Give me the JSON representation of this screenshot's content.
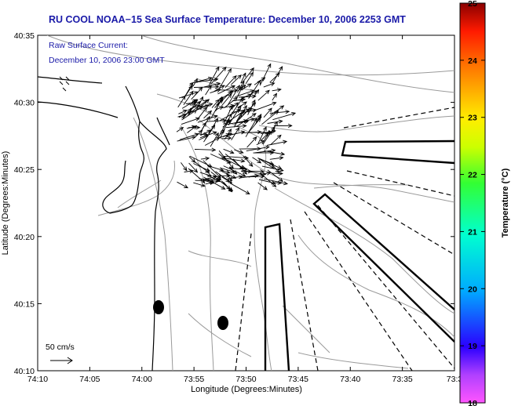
{
  "title": "RU COOL  NOAA−15  Sea Surface Temperature:  December 10, 2006 2253 GMT",
  "annotation": {
    "line1": "Raw Surface Current:",
    "line2": "December 10, 2006 23:00 GMT"
  },
  "scale_label": "50 cm/s",
  "axes": {
    "xlabel": "Longitude (Degrees:Minutes)",
    "ylabel": "Latitude (Degrees:Minutes)",
    "x_ticks": [
      "74:10",
      "74:05",
      "74:00",
      "73:55",
      "73:50",
      "73:45",
      "73:40",
      "73:35",
      "73:3"
    ],
    "y_ticks": [
      "40:35",
      "40:30",
      "40:25",
      "40:20",
      "40:15",
      "40:10"
    ]
  },
  "colorbar": {
    "label": "Temperature (°C)",
    "ticks": [
      "25",
      "24",
      "23",
      "22",
      "21",
      "20",
      "19",
      "18"
    ],
    "min": 18,
    "max": 25
  },
  "colors": {
    "title": "#1a1aa8",
    "annotation": "#1a1aa8",
    "coastline": "#000000",
    "bathymetry": "#999999",
    "current_vectors": "#000000"
  }
}
